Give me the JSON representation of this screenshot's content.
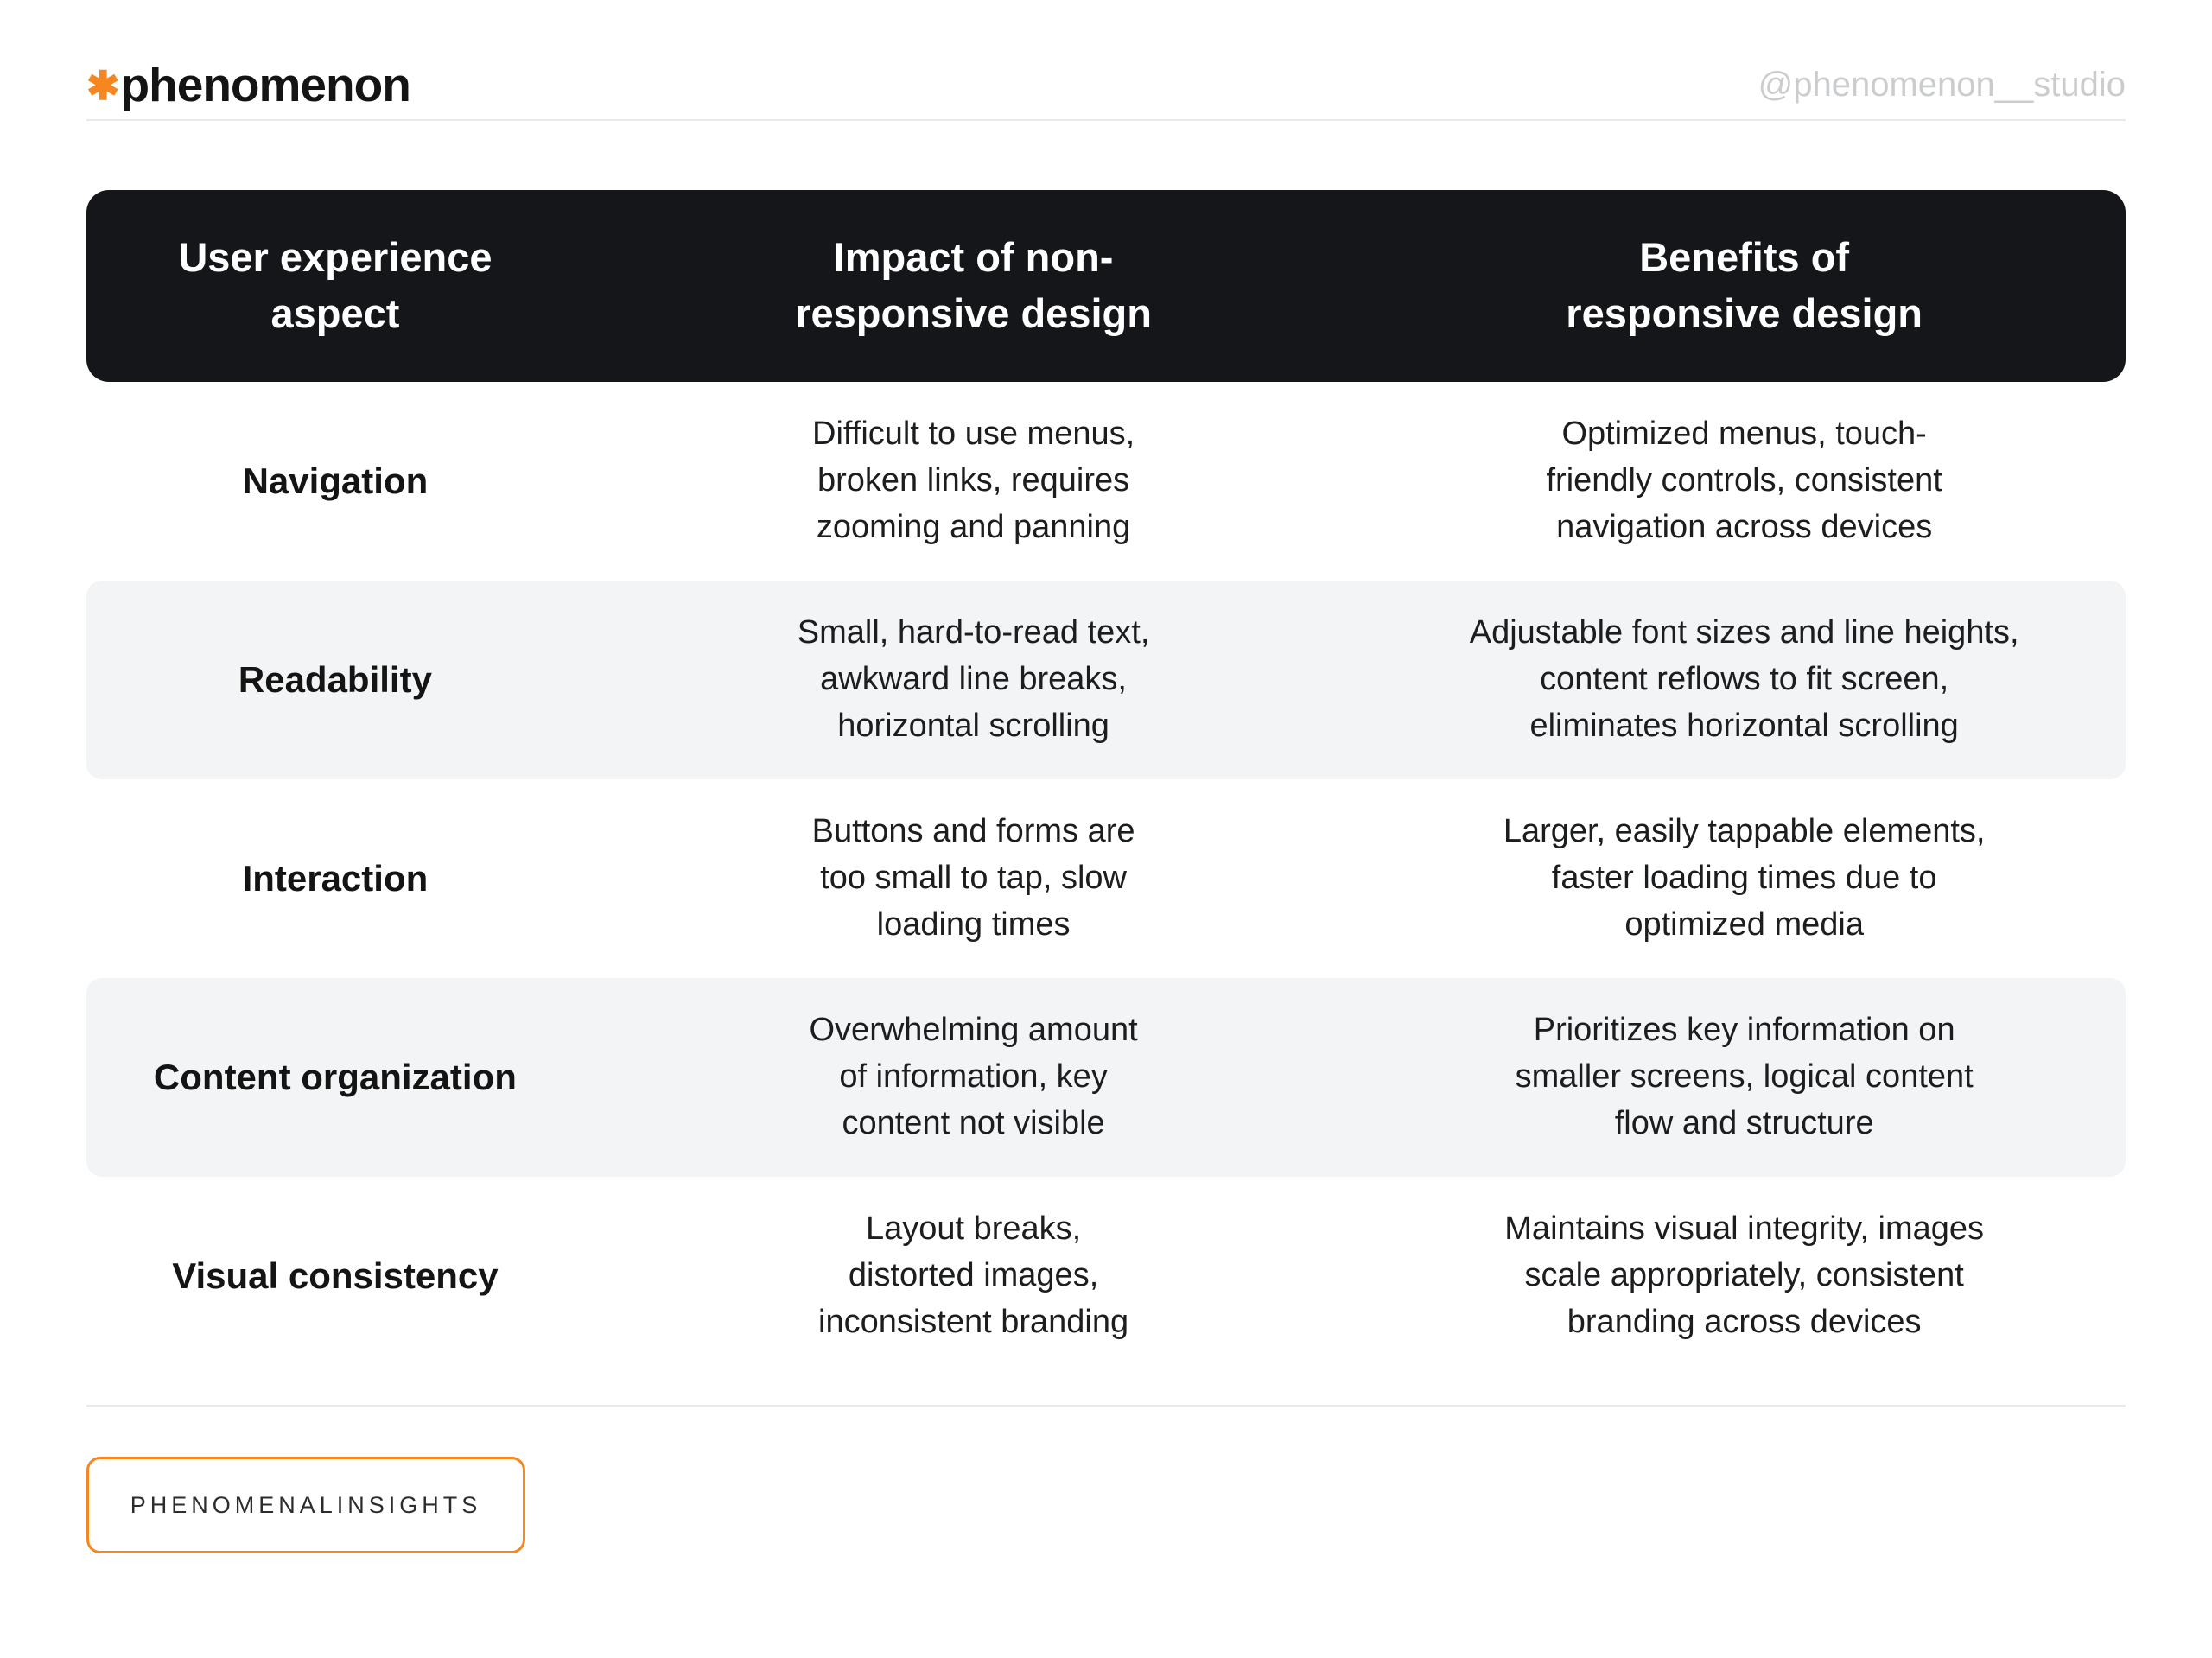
{
  "brand": {
    "logo_mark": "✱",
    "logo_text": "phenomenon",
    "social_handle": "@phenomenon__studio"
  },
  "table": {
    "headers": [
      "User experience\naspect",
      "Impact of non-\nresponsive design",
      "Benefits of\nresponsive design"
    ],
    "rows": [
      {
        "aspect": "Navigation",
        "impact": "Difficult to use menus,\nbroken links, requires\nzooming and panning",
        "benefit": "Optimized menus, touch-\nfriendly controls, consistent\nnavigation across devices"
      },
      {
        "aspect": "Readability",
        "impact": "Small, hard-to-read text,\nawkward line breaks,\nhorizontal scrolling",
        "benefit": "Adjustable font sizes and line heights,\ncontent reflows to fit screen,\neliminates horizontal scrolling"
      },
      {
        "aspect": "Interaction",
        "impact": "Buttons and forms are\ntoo small to tap, slow\nloading times",
        "benefit": "Larger, easily tappable elements,\nfaster loading times due to\noptimized media"
      },
      {
        "aspect": "Content organization",
        "impact": "Overwhelming amount\nof information, key\ncontent not visible",
        "benefit": "Prioritizes key information on\nsmaller screens, logical content\nflow and structure"
      },
      {
        "aspect": "Visual consistency",
        "impact": "Layout breaks,\ndistorted images,\ninconsistent branding",
        "benefit": "Maintains visual integrity, images\nscale appropriately, consistent\nbranding across devices"
      }
    ]
  },
  "footer": {
    "button_label": "PHENOMENALINSIGHTS"
  },
  "colors": {
    "accent_orange": "#f6861f",
    "header_bg": "#14161a",
    "row_alt_bg": "#f3f4f5",
    "handle_gray": "#cbcccd"
  }
}
